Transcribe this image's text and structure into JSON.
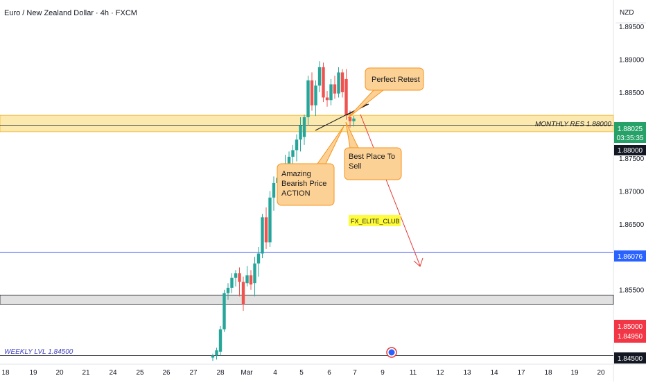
{
  "header": {
    "title": "Euro / New Zealand Dollar · 4h · FXCM",
    "currency": "NZD"
  },
  "colors": {
    "up": "#26a69a",
    "down": "#ef5350",
    "zone": "#fbe9b0",
    "zone_line": "#f0b429",
    "support": "#e1e1e1",
    "blue_line": "#3f51f5",
    "callout": "#fcd196",
    "callout_border": "#f7931a",
    "arrow": "#e53935",
    "label_green": "#26a269",
    "label_black": "#131722",
    "label_blue": "#2962ff",
    "label_red": "#f23645",
    "tag_yellow": "#fffc3b"
  },
  "chart_data": {
    "type": "candlestick",
    "title": "Euro / New Zealand Dollar · 4h · FXCM",
    "xlabel": "",
    "ylabel": "NZD",
    "ylim": [
      1.8437,
      1.899
    ],
    "x_ticks": [
      "18",
      "19",
      "20",
      "21",
      "24",
      "25",
      "26",
      "27",
      "28",
      "Mar",
      "4",
      "5",
      "6",
      "7",
      "9",
      "11",
      "12",
      "13",
      "14",
      "17",
      "18",
      "19",
      "20"
    ],
    "y_ticks": [
      "1.89500",
      "1.89000",
      "1.88500",
      "1.88000",
      "1.87500",
      "1.87000",
      "1.86500",
      "1.86000",
      "1.85500",
      "1.85000",
      "1.84500"
    ],
    "candles": [
      {
        "x": 307.0,
        "o": 1.8447,
        "h": 1.8453,
        "l": 1.8442,
        "c": 1.845
      },
      {
        "x": 312.5,
        "o": 1.845,
        "h": 1.8462,
        "l": 1.8444,
        "c": 1.8458
      },
      {
        "x": 318.0,
        "o": 1.8456,
        "h": 1.8495,
        "l": 1.845,
        "c": 1.849
      },
      {
        "x": 323.5,
        "o": 1.849,
        "h": 1.855,
        "l": 1.8486,
        "c": 1.8545
      },
      {
        "x": 329.0,
        "o": 1.8545,
        "h": 1.856,
        "l": 1.8535,
        "c": 1.8553
      },
      {
        "x": 334.5,
        "o": 1.8553,
        "h": 1.8575,
        "l": 1.8545,
        "c": 1.8568
      },
      {
        "x": 340.0,
        "o": 1.8568,
        "h": 1.858,
        "l": 1.8555,
        "c": 1.8575
      },
      {
        "x": 345.5,
        "o": 1.8575,
        "h": 1.8584,
        "l": 1.854,
        "c": 1.8562
      },
      {
        "x": 351.0,
        "o": 1.8562,
        "h": 1.857,
        "l": 1.8518,
        "c": 1.8528
      },
      {
        "x": 356.5,
        "o": 1.856,
        "h": 1.8586,
        "l": 1.8555,
        "c": 1.8572
      },
      {
        "x": 362.0,
        "o": 1.8572,
        "h": 1.858,
        "l": 1.855,
        "c": 1.8558
      },
      {
        "x": 367.5,
        "o": 1.856,
        "h": 1.86,
        "l": 1.854,
        "c": 1.859
      },
      {
        "x": 373.0,
        "o": 1.859,
        "h": 1.8615,
        "l": 1.857,
        "c": 1.8605
      },
      {
        "x": 378.5,
        "o": 1.8605,
        "h": 1.8665,
        "l": 1.8598,
        "c": 1.866
      },
      {
        "x": 384.0,
        "o": 1.866,
        "h": 1.8675,
        "l": 1.8612,
        "c": 1.8622
      },
      {
        "x": 389.5,
        "o": 1.8622,
        "h": 1.87,
        "l": 1.8615,
        "c": 1.869
      },
      {
        "x": 395.0,
        "o": 1.869,
        "h": 1.8722,
        "l": 1.867,
        "c": 1.8712
      },
      {
        "x": 400.5,
        "o": 1.8712,
        "h": 1.8728,
        "l": 1.8685,
        "c": 1.872
      },
      {
        "x": 406.0,
        "o": 1.872,
        "h": 1.874,
        "l": 1.87,
        "c": 1.873
      },
      {
        "x": 411.5,
        "o": 1.873,
        "h": 1.8755,
        "l": 1.8718,
        "c": 1.8742
      },
      {
        "x": 417.0,
        "o": 1.8742,
        "h": 1.876,
        "l": 1.8722,
        "c": 1.8752
      },
      {
        "x": 422.5,
        "o": 1.8752,
        "h": 1.877,
        "l": 1.8732,
        "c": 1.8762
      },
      {
        "x": 428.0,
        "o": 1.8762,
        "h": 1.8786,
        "l": 1.8745,
        "c": 1.8778
      },
      {
        "x": 433.5,
        "o": 1.8778,
        "h": 1.8812,
        "l": 1.876,
        "c": 1.88
      },
      {
        "x": 439.0,
        "o": 1.8782,
        "h": 1.8816,
        "l": 1.877,
        "c": 1.8812
      },
      {
        "x": 444.5,
        "o": 1.8812,
        "h": 1.8875,
        "l": 1.88,
        "c": 1.8868
      },
      {
        "x": 450.0,
        "o": 1.8868,
        "h": 1.888,
        "l": 1.8822,
        "c": 1.883
      },
      {
        "x": 455.5,
        "o": 1.883,
        "h": 1.8868,
        "l": 1.8814,
        "c": 1.886
      },
      {
        "x": 461.0,
        "o": 1.886,
        "h": 1.8897,
        "l": 1.885,
        "c": 1.8888
      },
      {
        "x": 466.5,
        "o": 1.8888,
        "h": 1.8895,
        "l": 1.8835,
        "c": 1.8842
      },
      {
        "x": 472.0,
        "o": 1.8842,
        "h": 1.8852,
        "l": 1.8828,
        "c": 1.8838
      },
      {
        "x": 477.5,
        "o": 1.8838,
        "h": 1.887,
        "l": 1.883,
        "c": 1.8862
      },
      {
        "x": 483.0,
        "o": 1.8862,
        "h": 1.8875,
        "l": 1.884,
        "c": 1.8848
      },
      {
        "x": 488.5,
        "o": 1.8848,
        "h": 1.8888,
        "l": 1.8842,
        "c": 1.888
      },
      {
        "x": 494.0,
        "o": 1.888,
        "h": 1.8885,
        "l": 1.8842,
        "c": 1.885
      },
      {
        "x": 499.5,
        "o": 1.887,
        "h": 1.8885,
        "l": 1.8808,
        "c": 1.8815
      },
      {
        "x": 505.0,
        "o": 1.8812,
        "h": 1.8822,
        "l": 1.8796,
        "c": 1.8806
      },
      {
        "x": 510.5,
        "o": 1.8806,
        "h": 1.8814,
        "l": 1.8798,
        "c": 1.881
      }
    ],
    "monthly_resistance": {
      "label": "MONTHLY RES 1.88000",
      "low": 1.879,
      "high": 1.8815,
      "line": 1.88
    },
    "weekly_support": {
      "label": "WEEKLY LVL 1.84500",
      "low": 1.8528,
      "high": 1.8542,
      "line": 1.845
    },
    "blue_level": 1.8607,
    "price_labels": [
      {
        "kind": "green",
        "value": "1.88025",
        "sub": "03:35:35"
      },
      {
        "kind": "black",
        "value": "1.88000"
      },
      {
        "kind": "blue",
        "value": "1.86076"
      },
      {
        "kind": "red",
        "value": "1.85000",
        "sub": "1.84950"
      },
      {
        "kind": "black",
        "value": "1.84500"
      }
    ],
    "annotations": {
      "perfect_retest": "Perfect Retest",
      "best_place": [
        "Best Place To",
        "Sell"
      ],
      "amazing": [
        "Amazing",
        "Bearish Price",
        "ACTION"
      ],
      "club_tag": "FX_ELITE_CLUB"
    }
  }
}
